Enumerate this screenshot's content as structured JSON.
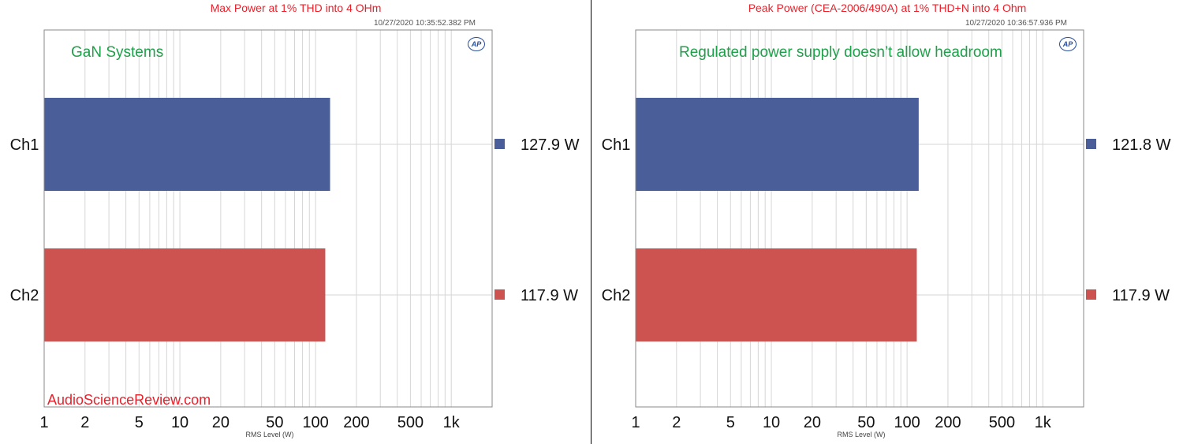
{
  "colors": {
    "ch1": "#4a5e9a",
    "ch2": "#cc534f",
    "title": "#e8212b",
    "annotation": "#1fa04a",
    "watermark": "#e8212b",
    "grid": "#d6d6d6"
  },
  "icons": {
    "logo": "ap-logo"
  },
  "watermark": "AudioScienceReview.com",
  "logo_text": "AP",
  "chart_data": [
    {
      "type": "bar",
      "orientation": "horizontal",
      "title": "Max Power at 1% THD into 4 OHm",
      "timestamp": "10/27/2020 10:35:52.382 PM",
      "annotation": "GaN Systems",
      "xlabel": "RMS Level (W)",
      "xscale": "log",
      "xlim": [
        1,
        2000
      ],
      "xticks": [
        "1",
        "2",
        "5",
        "10",
        "20",
        "50",
        "100",
        "200",
        "500",
        "1k"
      ],
      "categories": [
        "Ch1",
        "Ch2"
      ],
      "values": [
        127.9,
        117.9
      ],
      "value_labels": [
        "127.9  W",
        "117.9  W"
      ],
      "grid": true
    },
    {
      "type": "bar",
      "orientation": "horizontal",
      "title": "Peak Power (CEA-2006/490A) at 1% THD+N into 4 Ohm",
      "timestamp": "10/27/2020 10:36:57.936 PM",
      "annotation": "Regulated power supply doesn’t allow headroom",
      "xlabel": "RMS Level (W)",
      "xscale": "log",
      "xlim": [
        1,
        2000
      ],
      "xticks": [
        "1",
        "2",
        "5",
        "10",
        "20",
        "50",
        "100",
        "200",
        "500",
        "1k"
      ],
      "categories": [
        "Ch1",
        "Ch2"
      ],
      "values": [
        121.8,
        117.9
      ],
      "value_labels": [
        "121.8  W",
        "117.9  W"
      ],
      "grid": true
    }
  ]
}
